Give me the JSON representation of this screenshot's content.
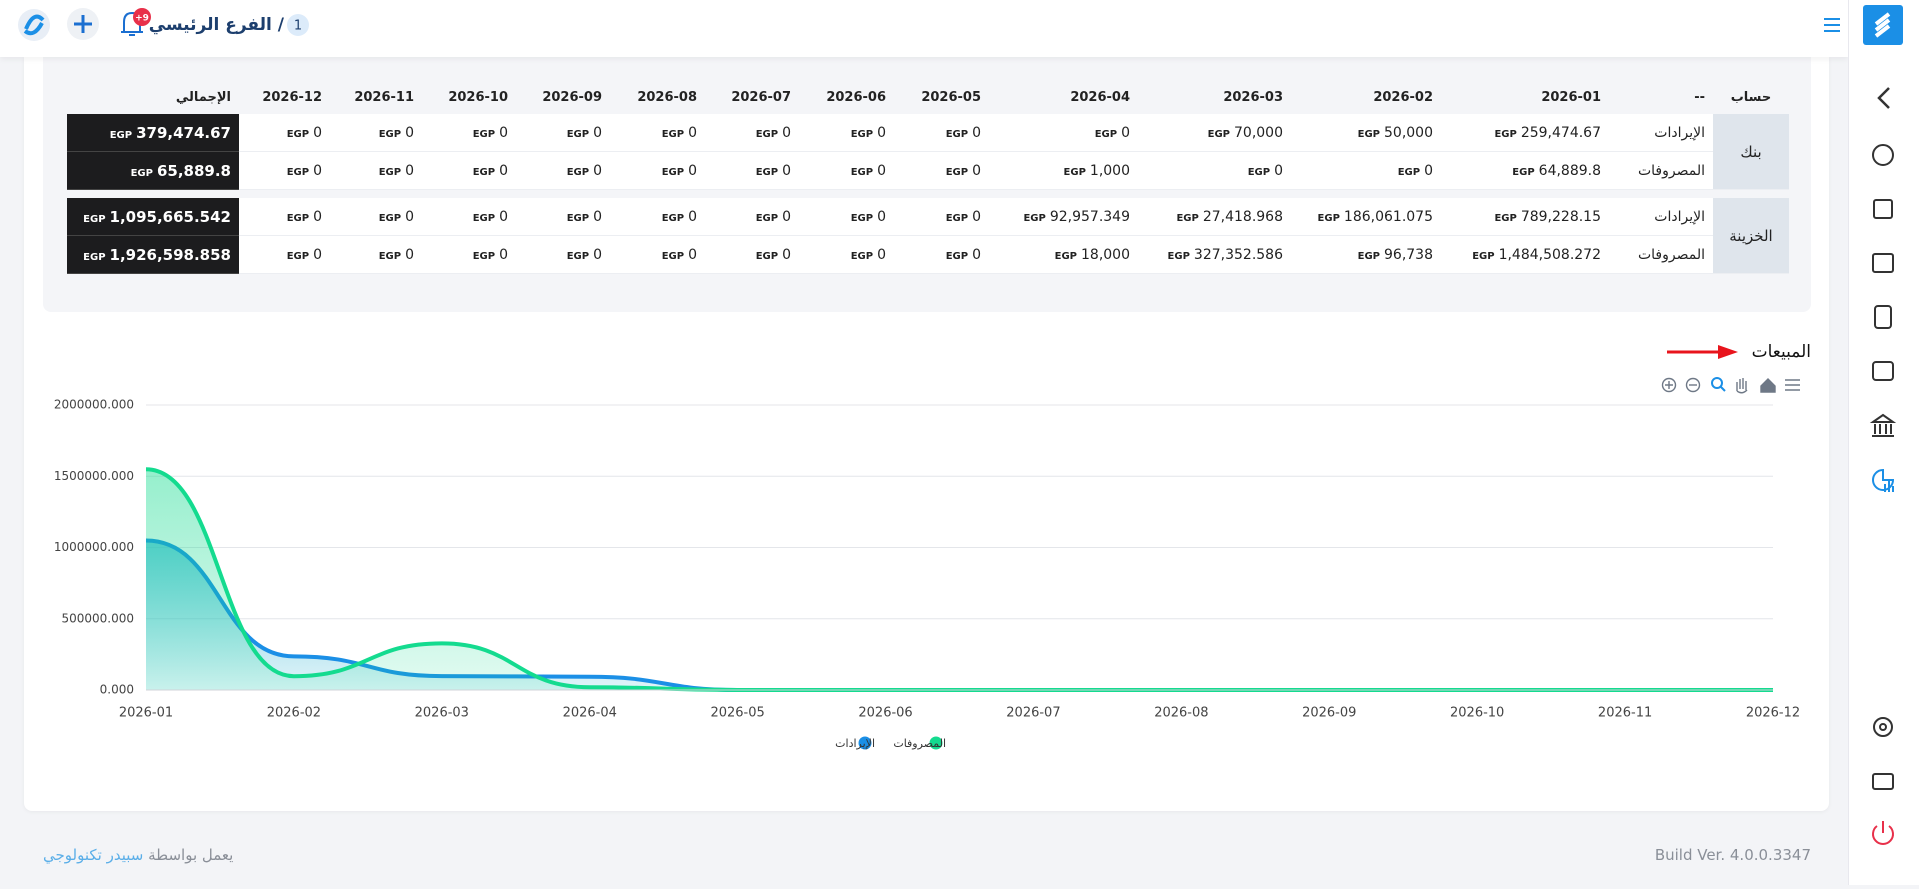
{
  "header": {
    "branch": "الفرع الرئيسي /",
    "branch_number": "1",
    "notifications": "+9"
  },
  "table": {
    "headers": [
      "حساب",
      "--",
      "2026-01",
      "2026-02",
      "2026-03",
      "2026-04",
      "2026-05",
      "2026-06",
      "2026-07",
      "2026-08",
      "2026-09",
      "2026-10",
      "2026-11",
      "2026-12",
      "الإجمالي"
    ],
    "currency": "EGP",
    "groups": [
      {
        "account": "بنك",
        "rows": [
          {
            "label": "الإيرادات",
            "cells": [
              "259,474.67",
              "50,000",
              "70,000",
              "0",
              "0",
              "0",
              "0",
              "0",
              "0",
              "0",
              "0",
              "0",
              "379,474.67"
            ]
          },
          {
            "label": "المصروفات",
            "cells": [
              "64,889.8",
              "0",
              "0",
              "1,000",
              "0",
              "0",
              "0",
              "0",
              "0",
              "0",
              "0",
              "0",
              "65,889.8"
            ]
          }
        ]
      },
      {
        "account": "الخزينة",
        "rows": [
          {
            "label": "الإيرادات",
            "cells": [
              "789,228.15",
              "186,061.075",
              "27,418.968",
              "92,957.349",
              "0",
              "0",
              "0",
              "0",
              "0",
              "0",
              "0",
              "0",
              "1,095,665.542"
            ]
          },
          {
            "label": "المصروفات",
            "cells": [
              "1,484,508.272",
              "96,738",
              "327,352.586",
              "18,000",
              "0",
              "0",
              "0",
              "0",
              "0",
              "0",
              "0",
              "0",
              "1,926,598.858"
            ]
          }
        ]
      }
    ]
  },
  "chart_data": {
    "type": "area",
    "title": "المبيعات",
    "categories": [
      "2026-01",
      "2026-02",
      "2026-03",
      "2026-04",
      "2026-05",
      "2026-06",
      "2026-07",
      "2026-08",
      "2026-09",
      "2026-10",
      "2026-11",
      "2026-12"
    ],
    "series": [
      {
        "name": "الإيرادات",
        "color": "#1b8fe6",
        "values": [
          1048702.82,
          236061.075,
          97418.968,
          92957.349,
          0,
          0,
          0,
          0,
          0,
          0,
          0,
          0
        ]
      },
      {
        "name": "المصروفات",
        "color": "#14db8f",
        "values": [
          1549398.072,
          96738,
          327352.586,
          19000,
          0,
          0,
          0,
          0,
          0,
          0,
          0,
          0
        ]
      }
    ],
    "ylim": [
      0,
      2000000
    ],
    "yticks": [
      {
        "value": 0,
        "label": "0.000"
      },
      {
        "value": 500000,
        "label": "500000.000"
      },
      {
        "value": 1000000,
        "label": "1000000.000"
      },
      {
        "value": 1500000,
        "label": "1500000.000"
      },
      {
        "value": 2000000,
        "label": "2000000.000"
      }
    ],
    "grid": true,
    "legend": "bottom"
  },
  "footer": {
    "build": "Build Ver. 4.0.0.3347",
    "powered_by": "يعمل بواسطة",
    "company": "سبيدر تكنولوجي"
  }
}
